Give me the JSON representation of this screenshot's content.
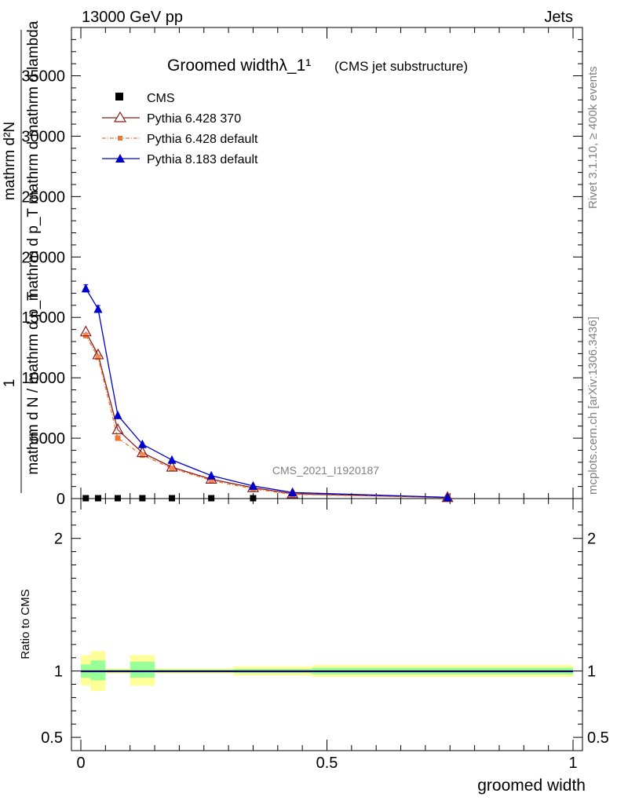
{
  "header": {
    "energy": "13000 GeV pp",
    "category": "Jets"
  },
  "side": {
    "rivet": "Rivet 3.1.10, ≥ 400k events",
    "source": "mcplots.cern.ch [arXiv:1306.3436]"
  },
  "chart_data": {
    "type": "line",
    "title": "Groomed widthλ_1¹",
    "subtitle": "(CMS jet substructure)",
    "analysis_label": "CMS_2021_I1920187",
    "ylabel_numerator": "mathrm d²N",
    "ylabel_denominator": "mathrm d p_T mathrm d mathrm d lambda",
    "ylabel_prefix": "1",
    "ylabel_prefix_denominator": "mathrm d N / mathrm d p_T",
    "xlabel": "groomed width",
    "ratio_ylabel": "Ratio to CMS",
    "xlim": [
      0,
      1
    ],
    "ylim": [
      0,
      39000
    ],
    "ratio_ylim": [
      0.4,
      2.3
    ],
    "x_ticks": [
      "0",
      "0.5",
      "1"
    ],
    "y_ticks": [
      {
        "value": 5000,
        "label": "5000"
      },
      {
        "value": 10000,
        "label": "10000"
      },
      {
        "value": 15000,
        "label": "15000"
      },
      {
        "value": 20000,
        "label": "20000"
      },
      {
        "value": 25000,
        "label": "25000"
      },
      {
        "value": 30000,
        "label": "30000"
      },
      {
        "value": 35000,
        "label": "35000"
      }
    ],
    "ratio_ticks": [
      {
        "value": 0.5,
        "label": "0.5"
      },
      {
        "value": 1,
        "label": "1"
      },
      {
        "value": 2,
        "label": "2"
      }
    ],
    "legend": {
      "cms": "CMS",
      "p6_370": "Pythia 6.428 370",
      "p6_default": "Pythia 6.428 default",
      "p8_default": "Pythia 8.183 default"
    },
    "x": [
      0.01,
      0.035,
      0.075,
      0.125,
      0.185,
      0.265,
      0.35,
      0.43,
      0.745
    ],
    "series": [
      {
        "name": "CMS",
        "color": "#000000",
        "marker": "square",
        "values": [
          30,
          30,
          30,
          30,
          30,
          30,
          30,
          null,
          null
        ]
      },
      {
        "name": "Pythia 6.428 370",
        "color": "#8b1a1a",
        "marker": "open-triangle",
        "values": [
          13800,
          11900,
          5700,
          3800,
          2600,
          1600,
          900,
          400,
          80
        ]
      },
      {
        "name": "Pythia 6.428 default",
        "color": "#ee7733",
        "marker": "square-small",
        "dash": true,
        "values": [
          13500,
          11700,
          5000,
          3600,
          2500,
          1500,
          800,
          350,
          70
        ]
      },
      {
        "name": "Pythia 8.183 default",
        "color": "#0000cc",
        "marker": "filled-triangle",
        "values": [
          17400,
          15700,
          6900,
          4500,
          3200,
          1900,
          1050,
          500,
          100
        ]
      }
    ],
    "errors_p8": [
      300,
      280,
      0,
      0,
      0,
      0,
      0,
      0,
      0
    ],
    "ratio_bands": [
      {
        "x0": 0.0,
        "x1": 0.02,
        "inner": [
          0.95,
          1.05
        ],
        "outer": [
          0.89,
          1.12
        ]
      },
      {
        "x0": 0.02,
        "x1": 0.05,
        "inner": [
          0.93,
          1.08
        ],
        "outer": [
          0.85,
          1.15
        ]
      },
      {
        "x0": 0.05,
        "x1": 0.1,
        "inner": [
          0.99,
          1.01
        ],
        "outer": [
          0.98,
          1.02
        ]
      },
      {
        "x0": 0.1,
        "x1": 0.15,
        "inner": [
          0.95,
          1.07
        ],
        "outer": [
          0.89,
          1.12
        ]
      },
      {
        "x0": 0.15,
        "x1": 0.31,
        "inner": [
          0.99,
          1.01
        ],
        "outer": [
          0.98,
          1.02
        ]
      },
      {
        "x0": 0.31,
        "x1": 0.47,
        "inner": [
          0.985,
          1.015
        ],
        "outer": [
          0.965,
          1.035
        ]
      },
      {
        "x0": 0.47,
        "x1": 1.0,
        "inner": [
          0.975,
          1.025
        ],
        "outer": [
          0.955,
          1.045
        ]
      }
    ]
  }
}
